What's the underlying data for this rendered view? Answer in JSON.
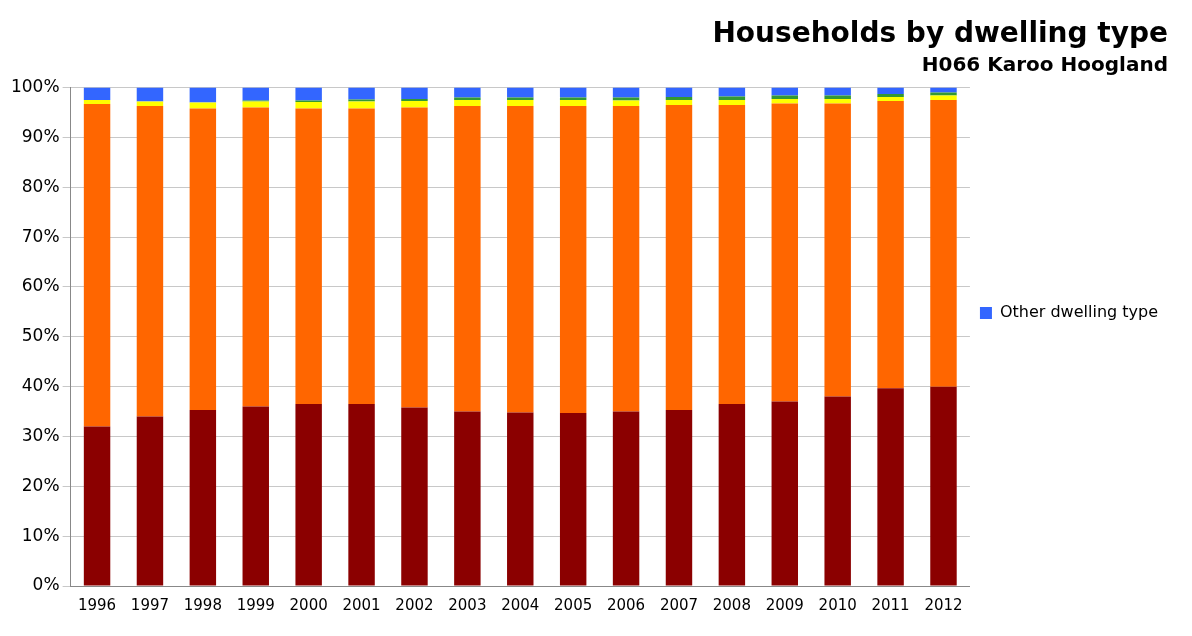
{
  "chart_data": {
    "type": "bar",
    "title": "Households by dwelling type",
    "subtitle": "H066 Karoo Hoogland",
    "categories": [
      "1996",
      "1997",
      "1998",
      "1999",
      "2000",
      "2001",
      "2002",
      "2003",
      "2004",
      "2005",
      "2006",
      "2007",
      "2008",
      "2009",
      "2010",
      "2011",
      "2012"
    ],
    "stacked": true,
    "ylim": [
      0,
      100
    ],
    "yticks": [
      {
        "value": 0,
        "label": "0%"
      },
      {
        "value": 10,
        "label": "10%"
      },
      {
        "value": 20,
        "label": "20%"
      },
      {
        "value": 30,
        "label": "30%"
      },
      {
        "value": 40,
        "label": "40%"
      },
      {
        "value": 50,
        "label": "50%"
      },
      {
        "value": 60,
        "label": "60%"
      },
      {
        "value": 70,
        "label": "70%"
      },
      {
        "value": 80,
        "label": "80%"
      },
      {
        "value": 90,
        "label": "90%"
      },
      {
        "value": 100,
        "label": "100%"
      }
    ],
    "grid": "y",
    "legend": "right",
    "series": [
      {
        "color": "#8b0000",
        "values": [
          32,
          34,
          35.3,
          36,
          36.5,
          36.5,
          35.8,
          35,
          34.8,
          34.7,
          35,
          35.3,
          36.5,
          37,
          38,
          39.7,
          40
        ]
      },
      {
        "color": "#ff6600",
        "values": [
          64.7,
          62.3,
          60.5,
          60,
          59.3,
          59.3,
          60.2,
          61.3,
          61.5,
          61.6,
          61.3,
          61.2,
          60,
          59.8,
          58.8,
          57.6,
          57.5
        ]
      },
      {
        "color": "#ffff00",
        "values": [
          0.8,
          0.9,
          1.2,
          1.2,
          1.3,
          1.4,
          1.3,
          1.2,
          1.2,
          1.2,
          1.1,
          1,
          1,
          0.9,
          0.9,
          0.8,
          0.9
        ]
      },
      {
        "color": "#339933",
        "values": [
          0,
          0,
          0,
          0.2,
          0.3,
          0.4,
          0.4,
          0.5,
          0.5,
          0.5,
          0.6,
          0.6,
          0.7,
          0.7,
          0.7,
          0.6,
          0.6
        ]
      },
      {
        "name": "Other dwelling type",
        "color": "#3366ff",
        "values": [
          2.5,
          2.8,
          3,
          2.6,
          2.6,
          2.4,
          2.3,
          2,
          2,
          2,
          2,
          1.9,
          1.8,
          1.6,
          1.6,
          1.3,
          1
        ]
      }
    ]
  }
}
